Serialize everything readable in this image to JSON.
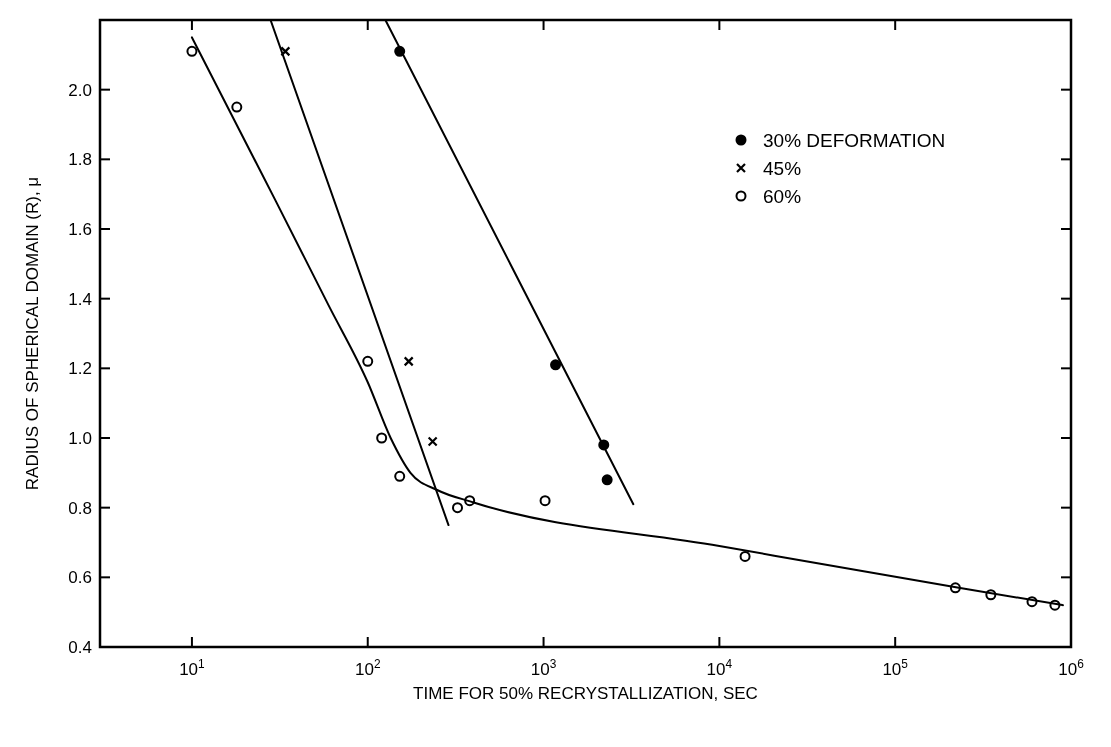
{
  "chart_data": {
    "type": "scatter",
    "xlabel": "TIME FOR 50% RECRYSTALLIZATION, SEC",
    "ylabel": "RADIUS OF SPHERICAL DOMAIN (R), μ",
    "log": "x",
    "legend": "top right",
    "xlim": [
      3,
      1000000
    ],
    "ylim": [
      0.4,
      2.2
    ],
    "xticks": [
      {
        "value": 10,
        "label": "10$^{1}$"
      },
      {
        "value": 100,
        "label": "10$^{2}$"
      },
      {
        "value": 1000,
        "label": "10$^{3}$"
      },
      {
        "value": 10000,
        "label": "10$^{4}$"
      },
      {
        "value": 100000,
        "label": "10$^{5}$"
      },
      {
        "value": 1000000,
        "label": "10$^{6}$"
      }
    ],
    "yticks": [
      {
        "value": 0.4,
        "label": "0.4"
      },
      {
        "value": 0.6,
        "label": "0.6"
      },
      {
        "value": 0.8,
        "label": "0.8"
      },
      {
        "value": 1.0,
        "label": "1.0"
      },
      {
        "value": 1.2,
        "label": "1.2"
      },
      {
        "value": 1.4,
        "label": "1.4"
      },
      {
        "value": 1.6,
        "label": "1.6"
      },
      {
        "value": 1.8,
        "label": "1.8"
      },
      {
        "value": 2.0,
        "label": "2.0"
      }
    ],
    "series": [
      {
        "name": "30% DEFORMATION",
        "marker": "circle",
        "color": "#000000",
        "x": [
          152,
          1170,
          2200,
          2300
        ],
        "values": [
          2.11,
          1.21,
          0.98,
          0.88
        ]
      },
      {
        "name": "45%",
        "marker": "cross",
        "color": "#000000",
        "x": [
          34,
          171,
          234
        ],
        "values": [
          2.11,
          1.22,
          0.99
        ]
      },
      {
        "name": "60%",
        "marker": "circle",
        "color": "#ffffff",
        "x": [
          10,
          18,
          100,
          120,
          152,
          324,
          380,
          1020,
          14000,
          220000,
          350000,
          600000,
          810000
        ],
        "values": [
          2.11,
          1.95,
          1.22,
          1.0,
          0.89,
          0.8,
          0.82,
          0.82,
          0.66,
          0.57,
          0.55,
          0.53,
          0.52
        ]
      },
      {
        "type": "line",
        "color": "#000000",
        "x": [
          126,
          3240
        ],
        "values": [
          2.2,
          0.81
        ]
      },
      {
        "type": "line",
        "color": "#000000",
        "x": [
          28,
          288
        ],
        "values": [
          2.2,
          0.75
        ]
      },
      {
        "type": "line",
        "color": "#000000",
        "x": [
          10,
          30,
          60,
          100,
          135,
          175,
          250,
          400,
          10000,
          230000,
          900000
        ],
        "values": [
          2.15,
          1.68,
          1.38,
          1.16,
          1.0,
          0.9,
          0.85,
          0.815,
          0.69,
          0.57,
          0.52
        ]
      }
    ]
  }
}
